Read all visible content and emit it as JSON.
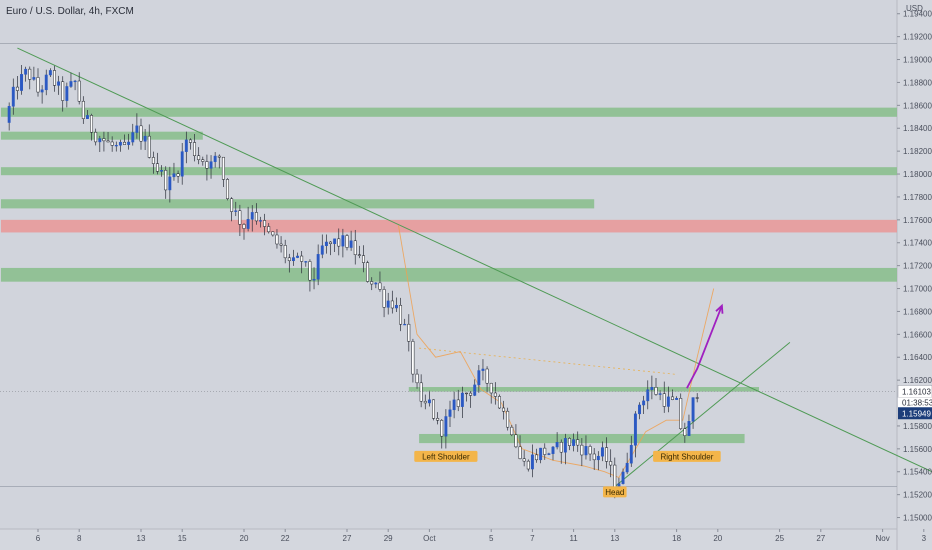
{
  "chart_data": {
    "type": "candlestick",
    "title": "Euro / U.S. Dollar, 4h, FXCM",
    "currency_label": "USD",
    "ylim": [
      1.149,
      1.1952
    ],
    "y_ticks": [
      "1.19400",
      "1.19200",
      "1.19000",
      "1.18800",
      "1.18600",
      "1.18400",
      "1.18200",
      "1.18000",
      "1.17800",
      "1.17600",
      "1.17400",
      "1.17200",
      "1.17000",
      "1.16800",
      "1.16600",
      "1.16400",
      "1.16200",
      "1.15800",
      "1.15600",
      "1.15400",
      "1.15200",
      "1.15000"
    ],
    "x_ticks": [
      {
        "label": "6",
        "day": 0
      },
      {
        "label": "8",
        "day": 2
      },
      {
        "label": "13",
        "day": 5
      },
      {
        "label": "15",
        "day": 7
      },
      {
        "label": "20",
        "day": 10
      },
      {
        "label": "22",
        "day": 12
      },
      {
        "label": "27",
        "day": 15
      },
      {
        "label": "29",
        "day": 17
      },
      {
        "label": "Oct",
        "day": 19
      },
      {
        "label": "5",
        "day": 22
      },
      {
        "label": "7",
        "day": 24
      },
      {
        "label": "11",
        "day": 26
      },
      {
        "label": "13",
        "day": 28
      },
      {
        "label": "18",
        "day": 31
      },
      {
        "label": "20",
        "day": 33
      },
      {
        "label": "25",
        "day": 36
      },
      {
        "label": "27",
        "day": 38
      },
      {
        "label": "Nov",
        "day": 41
      },
      {
        "label": "3",
        "day": 43
      }
    ],
    "price_path": [
      [
        -1.6,
        1.1845
      ],
      [
        -1.1,
        1.1875
      ],
      [
        -0.5,
        1.189
      ],
      [
        0.0,
        1.1872
      ],
      [
        0.6,
        1.1886
      ],
      [
        1.2,
        1.1868
      ],
      [
        1.8,
        1.188
      ],
      [
        2.2,
        1.185
      ],
      [
        2.8,
        1.1835
      ],
      [
        3.5,
        1.1825
      ],
      [
        4.2,
        1.182
      ],
      [
        4.8,
        1.1838
      ],
      [
        5.2,
        1.1828
      ],
      [
        5.8,
        1.1805
      ],
      [
        6.3,
        1.179
      ],
      [
        6.8,
        1.1805
      ],
      [
        7.2,
        1.183
      ],
      [
        7.8,
        1.1815
      ],
      [
        8.4,
        1.1808
      ],
      [
        8.8,
        1.1815
      ],
      [
        9.2,
        1.178
      ],
      [
        9.6,
        1.1765
      ],
      [
        10.0,
        1.1755
      ],
      [
        10.4,
        1.177
      ],
      [
        10.8,
        1.1755
      ],
      [
        11.3,
        1.1745
      ],
      [
        11.8,
        1.1735
      ],
      [
        12.3,
        1.172
      ],
      [
        12.8,
        1.1725
      ],
      [
        13.3,
        1.1705
      ],
      [
        13.8,
        1.1735
      ],
      [
        14.4,
        1.174
      ],
      [
        15.0,
        1.174
      ],
      [
        15.5,
        1.173
      ],
      [
        16.0,
        1.171
      ],
      [
        16.4,
        1.1705
      ],
      [
        16.8,
        1.169
      ],
      [
        17.3,
        1.1688
      ],
      [
        17.8,
        1.1665
      ],
      [
        18.3,
        1.162
      ],
      [
        18.6,
        1.1595
      ],
      [
        19.0,
        1.16
      ],
      [
        19.5,
        1.1575
      ],
      [
        20.0,
        1.159
      ],
      [
        20.5,
        1.1605
      ],
      [
        21.0,
        1.1612
      ],
      [
        21.5,
        1.1625
      ],
      [
        22.0,
        1.1615
      ],
      [
        22.5,
        1.1595
      ],
      [
        23.0,
        1.1578
      ],
      [
        23.5,
        1.1545
      ],
      [
        24.0,
        1.1552
      ],
      [
        24.5,
        1.1558
      ],
      [
        25.0,
        1.1556
      ],
      [
        25.5,
        1.1565
      ],
      [
        26.0,
        1.1566
      ],
      [
        26.5,
        1.156
      ],
      [
        27.0,
        1.1553
      ],
      [
        27.5,
        1.1555
      ],
      [
        28.0,
        1.153
      ],
      [
        28.4,
        1.1535
      ],
      [
        28.8,
        1.157
      ],
      [
        29.2,
        1.16
      ],
      [
        29.6,
        1.1612
      ],
      [
        30.0,
        1.161
      ],
      [
        30.5,
        1.1602
      ],
      [
        31.0,
        1.1598
      ],
      [
        31.3,
        1.157
      ],
      [
        31.6,
        1.158
      ],
      [
        31.9,
        1.161
      ],
      [
        32.1,
        1.1612
      ]
    ],
    "zones": [
      {
        "name": "resistance-1",
        "low": 1.185,
        "high": 1.1858,
        "from_day": -1.8,
        "to_day": 44,
        "color": "#8bbf8e"
      },
      {
        "name": "resistance-2",
        "low": 1.183,
        "high": 1.1837,
        "from_day": -1.8,
        "to_day": 8.0,
        "color": "#8bbf8e"
      },
      {
        "name": "resistance-3",
        "low": 1.1799,
        "high": 1.1806,
        "from_day": -1.8,
        "to_day": 44,
        "color": "#8bbf8e"
      },
      {
        "name": "resistance-4",
        "low": 1.177,
        "high": 1.1778,
        "from_day": -1.8,
        "to_day": 27.0,
        "color": "#8bbf8e"
      },
      {
        "name": "red-zone",
        "low": 1.1749,
        "high": 1.176,
        "from_day": -1.8,
        "to_day": 44,
        "color": "#e89a9a"
      },
      {
        "name": "resistance-5",
        "low": 1.1706,
        "high": 1.1718,
        "from_day": -1.8,
        "to_day": 44,
        "color": "#8bbf8e"
      },
      {
        "name": "neckline-zone",
        "low": 1.161,
        "high": 1.1614,
        "from_day": 18.0,
        "to_day": 35.0,
        "color": "#8bbf8e"
      },
      {
        "name": "support-zone",
        "low": 1.1565,
        "high": 1.1573,
        "from_day": 18.5,
        "to_day": 34.3,
        "color": "#8bbf8e"
      }
    ],
    "trendlines": [
      {
        "name": "downtrend-line",
        "from": [
          -1.0,
          1.191
        ],
        "to": [
          44.0,
          1.1535
        ],
        "color": "#4f9a55"
      },
      {
        "name": "uptrend-line",
        "from": [
          28.0,
          1.1527
        ],
        "to": [
          36.5,
          1.1653
        ],
        "color": "#4f9a55"
      }
    ],
    "projection_arrow": {
      "points": [
        [
          31.5,
          1.1613
        ],
        [
          32.0,
          1.163
        ],
        [
          33.2,
          1.1685
        ]
      ],
      "color": "#a020c0"
    },
    "pattern_curve": {
      "points": [
        [
          17.5,
          1.1755
        ],
        [
          18.4,
          1.166
        ],
        [
          19.3,
          1.164
        ],
        [
          20.5,
          1.1645
        ],
        [
          21.5,
          1.1612
        ],
        [
          22.5,
          1.16
        ],
        [
          23.5,
          1.156
        ],
        [
          25.0,
          1.155
        ],
        [
          26.5,
          1.1545
        ],
        [
          27.5,
          1.154
        ],
        [
          28.2,
          1.1535
        ],
        [
          29.5,
          1.1575
        ],
        [
          30.5,
          1.1585
        ],
        [
          31.3,
          1.1585
        ],
        [
          32.0,
          1.164
        ],
        [
          32.8,
          1.17
        ]
      ],
      "color": "#f0a050"
    },
    "neckline_dashed": {
      "from": [
        18.5,
        1.1648
      ],
      "to": [
        31.0,
        1.1625
      ],
      "color": "#e8b050"
    },
    "annotations": [
      {
        "text": "Left Shoulder",
        "day": 19.8,
        "price": 1.1553
      },
      {
        "text": "Head",
        "day": 28.0,
        "price": 1.1522
      },
      {
        "text": "Right Shoulder",
        "day": 31.5,
        "price": 1.1553
      }
    ],
    "horizontal_lines": [
      {
        "price": 1.1914
      },
      {
        "price": 1.1527
      }
    ],
    "current_price": {
      "value": "1.16103",
      "timer": "01:38:53",
      "second": "1.15949",
      "color": "#1c3d7a"
    }
  }
}
